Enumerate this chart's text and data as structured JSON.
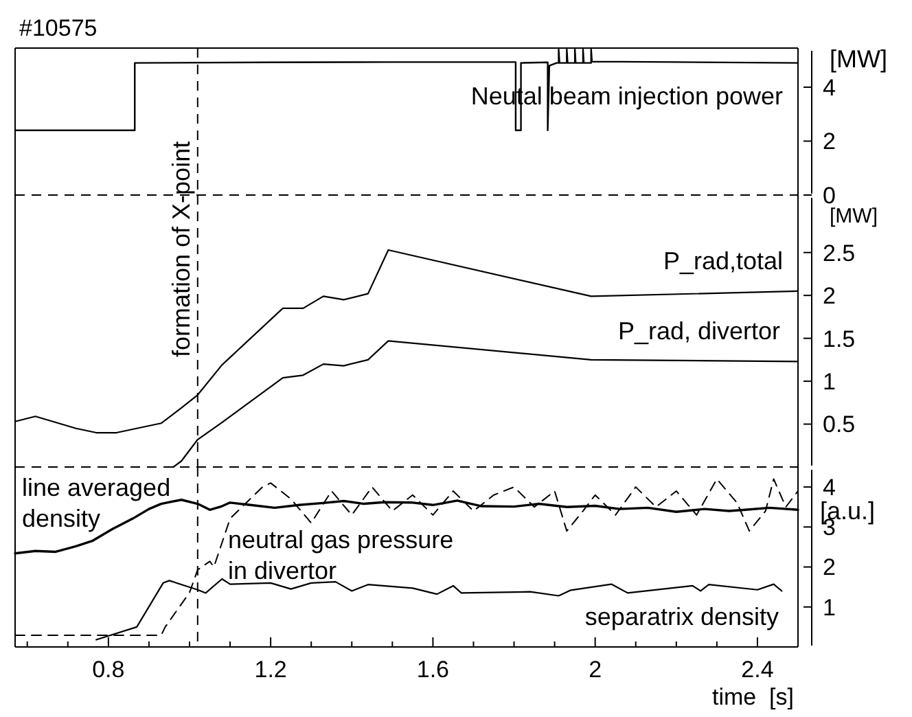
{
  "chart_data": [
    {
      "type": "line",
      "title": "#10575",
      "ylabel": "[MW]",
      "xlim": [
        0.57,
        2.5
      ],
      "ylim": [
        0,
        5.45
      ],
      "yticks": [
        0,
        2,
        4
      ],
      "tick_labels": "y",
      "ref_lines": [
        {
          "axis": "y",
          "value": 0,
          "line_style": "dashed"
        },
        {
          "axis": "x",
          "value": 1.02,
          "line_style": "dashed"
        }
      ],
      "series": [
        {
          "name": "Neutal beam injection power",
          "color": "#000000",
          "x": [
            0.57,
            0.865,
            0.865,
            1.2,
            1.5,
            1.804,
            1.804,
            1.817,
            1.817,
            1.883,
            1.883,
            1.887,
            1.905,
            1.91,
            1.91,
            1.912,
            1.93,
            1.93,
            1.932,
            1.95,
            1.95,
            1.952,
            1.97,
            1.97,
            1.972,
            1.99,
            1.99,
            1.992,
            2.2,
            2.5
          ],
          "values": [
            2.4,
            2.4,
            4.9,
            4.92,
            4.93,
            4.93,
            2.4,
            2.4,
            4.9,
            4.92,
            2.4,
            4.8,
            4.9,
            4.9,
            5.4,
            4.9,
            4.9,
            5.4,
            4.9,
            4.9,
            5.4,
            4.9,
            4.9,
            5.4,
            4.9,
            4.9,
            5.4,
            4.95,
            4.93,
            4.9
          ]
        }
      ]
    },
    {
      "type": "line",
      "ylabel": "[MW]",
      "xlim": [
        0.57,
        2.5
      ],
      "ylim": [
        0,
        3.17
      ],
      "yticks": [
        0.5,
        1,
        1.5,
        2,
        2.5
      ],
      "tick_labels": "y",
      "ref_lines": [
        {
          "axis": "y",
          "value": 0,
          "line_style": "dashed"
        },
        {
          "axis": "x",
          "value": 1.02,
          "label": "formation of X-point",
          "line_style": "dashed"
        }
      ],
      "series": [
        {
          "name": "P_rad,total",
          "color": "#000000",
          "x": [
            0.57,
            0.62,
            0.72,
            0.77,
            0.82,
            0.87,
            0.93,
            0.98,
            1.02,
            1.08,
            1.23,
            1.28,
            1.33,
            1.38,
            1.44,
            1.49,
            1.99,
            2.5
          ],
          "values": [
            0.53,
            0.59,
            0.45,
            0.4,
            0.4,
            0.45,
            0.51,
            0.69,
            0.84,
            1.19,
            1.85,
            1.85,
            1.99,
            1.95,
            2.02,
            2.53,
            1.99,
            2.05
          ]
        },
        {
          "name": "P_rad, divertor",
          "color": "#000000",
          "x": [
            0.96,
            0.98,
            1.02,
            1.08,
            1.23,
            1.28,
            1.33,
            1.38,
            1.44,
            1.49,
            1.99,
            2.5
          ],
          "values": [
            0,
            0.07,
            0.32,
            0.52,
            1.04,
            1.07,
            1.2,
            1.18,
            1.25,
            1.47,
            1.25,
            1.23
          ]
        }
      ]
    },
    {
      "type": "line",
      "ylabel": "[a.u.]",
      "xlabel": "time  [s]",
      "xlim": [
        0.57,
        2.5
      ],
      "ylim": [
        0,
        4.5
      ],
      "yticks": [
        1,
        2,
        3,
        4
      ],
      "xticks": [
        {
          "value": 0.6,
          "label": null
        },
        {
          "value": 0.7,
          "label": null
        },
        0.8,
        {
          "value": 0.9,
          "label": null
        },
        {
          "value": 1.0,
          "label": null
        },
        {
          "value": 1.1,
          "label": null
        },
        1.2,
        {
          "value": 1.3,
          "label": null
        },
        {
          "value": 1.4,
          "label": null
        },
        {
          "value": 1.5,
          "label": null
        },
        1.6,
        {
          "value": 1.7,
          "label": null
        },
        {
          "value": 1.8,
          "label": null
        },
        {
          "value": 1.9,
          "label": null
        },
        2,
        {
          "value": 2.1,
          "label": null
        },
        {
          "value": 2.2,
          "label": null
        },
        {
          "value": 2.3,
          "label": null
        },
        2.4
      ],
      "ref_lines": [
        {
          "axis": "x",
          "value": 1.02,
          "line_style": "dashed"
        }
      ],
      "series": [
        {
          "name": "line averaged\ndensity",
          "color": "#000000",
          "x": [
            0.57,
            0.62,
            0.67,
            0.72,
            0.76,
            0.81,
            0.86,
            0.9,
            0.93,
            0.98,
            1.02,
            1.05,
            1.08,
            1.1,
            1.15,
            1.21,
            1.27,
            1.33,
            1.38,
            1.43,
            1.48,
            1.55,
            1.6,
            1.66,
            1.72,
            1.8,
            1.86,
            1.93,
            2.0,
            2.06,
            2.13,
            2.2,
            2.27,
            2.33,
            2.37,
            2.43,
            2.5
          ],
          "values": [
            2.34,
            2.4,
            2.38,
            2.52,
            2.65,
            2.95,
            3.21,
            3.45,
            3.58,
            3.68,
            3.58,
            3.43,
            3.52,
            3.61,
            3.55,
            3.48,
            3.55,
            3.6,
            3.65,
            3.58,
            3.62,
            3.61,
            3.55,
            3.66,
            3.52,
            3.51,
            3.58,
            3.5,
            3.53,
            3.45,
            3.48,
            3.38,
            3.45,
            3.4,
            3.43,
            3.48,
            3.43
          ]
        },
        {
          "name": "neutral gas pressure\nin divertor",
          "color": "#000000",
          "line_style": "dashed",
          "x": [
            0.57,
            0.93,
            0.94,
            1.0,
            1.02,
            1.05,
            1.06,
            1.1,
            1.13,
            1.18,
            1.2,
            1.25,
            1.3,
            1.35,
            1.4,
            1.45,
            1.5,
            1.55,
            1.6,
            1.65,
            1.7,
            1.75,
            1.8,
            1.85,
            1.9,
            1.93,
            1.97,
            2.0,
            2.05,
            2.1,
            2.15,
            2.2,
            2.25,
            2.3,
            2.35,
            2.38,
            2.42,
            2.44,
            2.47,
            2.5
          ],
          "values": [
            0.29,
            0.29,
            0.5,
            1.36,
            1.93,
            2.14,
            2.0,
            3.21,
            3.51,
            4.0,
            4.1,
            3.7,
            3.1,
            3.9,
            3.3,
            4.0,
            3.4,
            3.8,
            3.3,
            3.9,
            3.4,
            3.8,
            4.0,
            3.5,
            3.9,
            2.9,
            3.4,
            3.8,
            3.3,
            4.0,
            3.5,
            3.9,
            3.3,
            4.2,
            3.6,
            2.9,
            3.4,
            4.2,
            3.5,
            3.9
          ]
        },
        {
          "name": "separatrix density",
          "color": "#000000",
          "x": [
            0.77,
            0.87,
            0.935,
            0.95,
            1.02,
            1.04,
            1.08,
            1.1,
            1.2,
            1.25,
            1.3,
            1.36,
            1.4,
            1.44,
            1.55,
            1.61,
            1.65,
            1.67,
            1.84,
            1.91,
            1.94,
            2.04,
            2.08,
            2.24,
            2.26,
            2.28,
            2.4,
            2.44,
            2.46
          ],
          "values": [
            0.18,
            0.5,
            1.6,
            1.66,
            1.43,
            1.35,
            1.7,
            1.57,
            1.6,
            1.45,
            1.6,
            1.63,
            1.4,
            1.56,
            1.47,
            1.32,
            1.53,
            1.35,
            1.38,
            1.28,
            1.42,
            1.57,
            1.35,
            1.53,
            1.4,
            1.56,
            1.43,
            1.57,
            1.4
          ]
        }
      ]
    }
  ]
}
